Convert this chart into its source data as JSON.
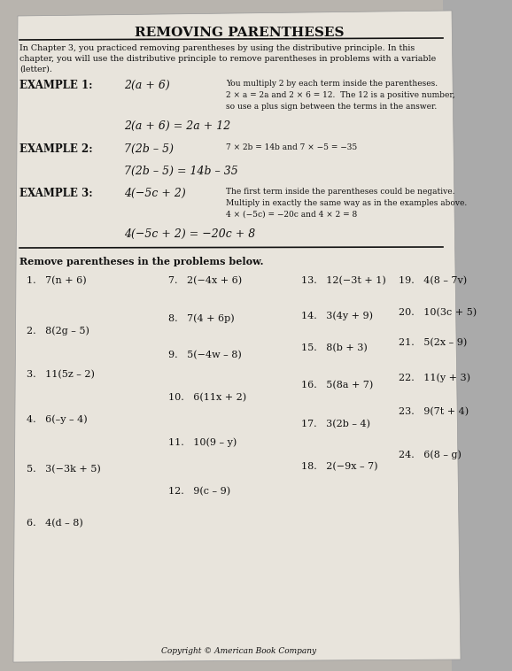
{
  "title": "REMOVING PARENTHESES",
  "intro_text_line1": "In Chapter 3, you practiced removing parentheses by using the distributive principle. In this",
  "intro_text_line2": "chapter, you will use the distributive principle to remove parentheses in problems with a variable",
  "intro_text_line3": "(letter).",
  "example1_label": "EXAMPLE 1:",
  "example1_expr": "2(a + 6)",
  "example1_desc_line1": "You multiply 2 by each term inside the parentheses.",
  "example1_desc_line2": "2 × a = 2a and 2 × 6 = 12.  The 12 is a positive number,",
  "example1_desc_line3": "so use a plus sign between the terms in the answer.",
  "example1_result": "2(a + 6) = 2a + 12",
  "example2_label": "EXAMPLE 2:",
  "example2_expr": "7(2b – 5)",
  "example2_desc": "7 × 2b = 14b and 7 × −5 = −35",
  "example2_result": "7(2b – 5) = 14b – 35",
  "example3_label": "EXAMPLE 3:",
  "example3_expr": "4(−5c + 2)",
  "example3_desc_line1": "The first term inside the parentheses could be negative.",
  "example3_desc_line2": "Multiply in exactly the same way as in the examples above.",
  "example3_desc_line3": "4 × (−5c) = −20c and 4 × 2 = 8",
  "example3_result": "4(−5c + 2) = −20c + 8",
  "section_label": "Remove parentheses in the problems below.",
  "col1": [
    "1.   7(n + 6)",
    "2.   8(2g – 5)",
    "3.   11(5z – 2)",
    "4.   6(–y – 4)",
    "5.   3(−3k + 5)",
    "6.   4(d – 8)"
  ],
  "col2": [
    "7.   2(−4x + 6)",
    "8.   7(4 + 6p)",
    "9.   5(−4w – 8)",
    "10.   6(11x + 2)",
    "11.   10(9 – y)",
    "12.   9(c – 9)"
  ],
  "col3": [
    "13.   12(−3t + 1)",
    "14.   3(4y + 9)",
    "15.   8(b + 3)",
    "16.   5(8a + 7)",
    "17.   3(2b – 4)",
    "18.   2(−9x – 7)"
  ],
  "col4": [
    "19.   4(8 – 7v)",
    "20.   10(3c + 5)",
    "21.   5(2x – 9)",
    "22.   11(y + 3)",
    "23.   9(7t + 4)",
    "24.   6(8 – g)"
  ],
  "copyright": "Copyright © American Book Company",
  "bg_color": "#b8b4ae",
  "page_color": "#e8e4dc",
  "text_color": "#111111",
  "line_color": "#111111"
}
